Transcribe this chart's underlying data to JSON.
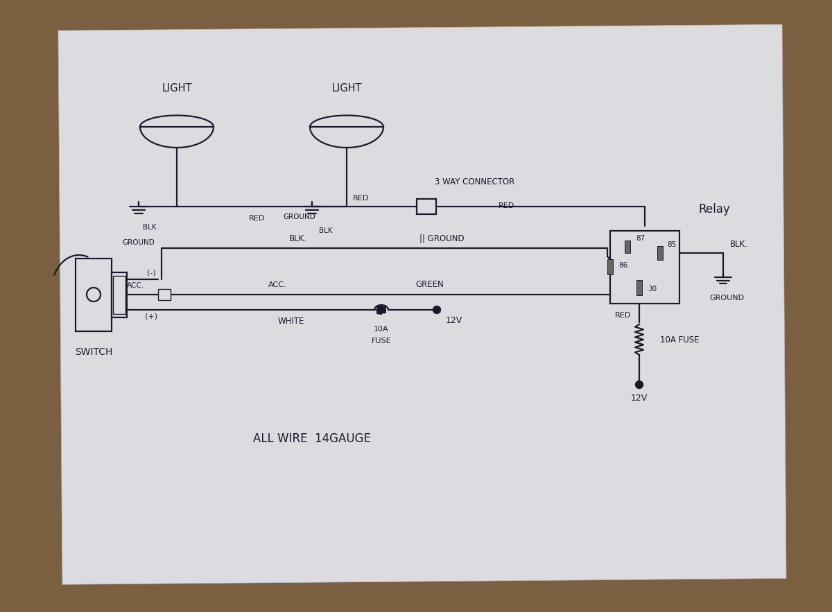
{
  "bg_wood_color": "#7a6040",
  "paper_color": "#dcdce0",
  "line_color": "#1a1a2e",
  "line_width": 1.6,
  "relay_label": "Relay",
  "switch_label": "SWITCH",
  "bottom_label": "ALL WIRE  14GAUGE",
  "light1_label": "LIGHT",
  "light2_label": "LIGHT",
  "connector_label": "3 WAY CONNECTOR"
}
